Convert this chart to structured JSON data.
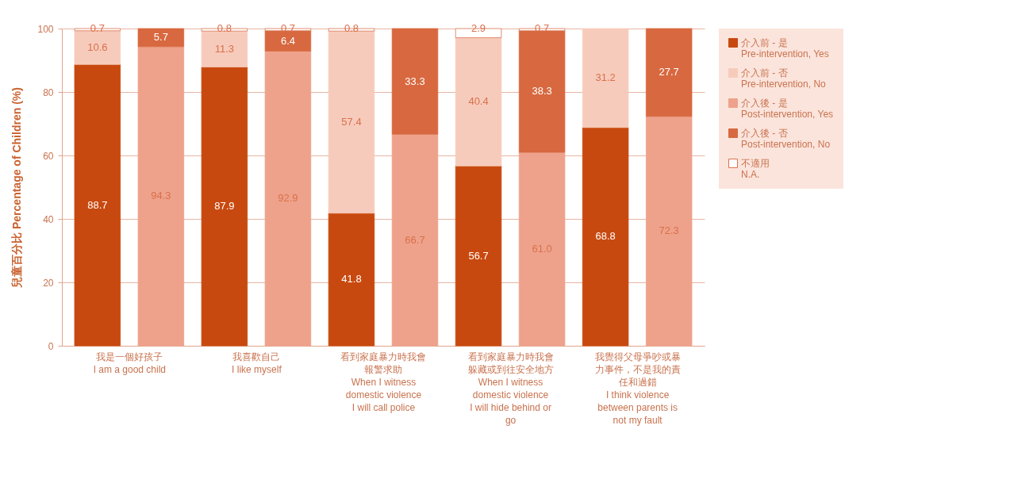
{
  "chart_data": {
    "type": "bar",
    "stacked": true,
    "ylabel": "兒童百分比 Percentage of Children (%)",
    "categories": [
      "我是一個好孩子\nI am a good child",
      null,
      "我喜歡自己\nI like myself",
      null,
      "看到家庭暴力時我會報警求助\nWhen I witness\ndomestic violence\nI will call police",
      null,
      "看到家庭暴力時我會躲藏或到往安全地方\nWhen I witness\ndomestic violence\nI will hide behind or\ngo",
      null,
      "我覺得父母爭吵或暴力事件，不是我的責任和過錯\nI think violence\nbetween parents is\nnot my fault",
      null
    ],
    "series": [
      {
        "name": "介入前 - 是\nPre-intervention, Yes",
        "color": "#c8490f",
        "values": [
          88.7,
          null,
          87.9,
          null,
          41.8,
          null,
          56.7,
          null,
          68.8,
          null
        ]
      },
      {
        "name": "介入前 - 否\nPre-intervention, No",
        "color": "#f7cbbb",
        "values": [
          10.6,
          null,
          11.3,
          null,
          57.4,
          null,
          40.4,
          null,
          31.2,
          null
        ]
      },
      {
        "name": "介入後 - 是\nPost-intervention, Yes",
        "color": "#eea28b",
        "values": [
          null,
          94.3,
          null,
          92.9,
          null,
          66.7,
          null,
          61.0,
          null,
          72.3
        ],
        "value_labels": [
          null,
          "94.3",
          null,
          "92.9",
          null,
          "66.7",
          null,
          "61.0",
          null,
          "72.3"
        ]
      },
      {
        "name": "介入後 - 否\nPost-intervention, No",
        "color": "#d8683f",
        "values": [
          null,
          5.7,
          null,
          6.4,
          null,
          33.3,
          null,
          38.3,
          null,
          27.7
        ]
      },
      {
        "name": "不適用\nN.A.",
        "color": "#ffffff",
        "values": [
          0.7,
          null,
          0.8,
          0.7,
          0.8,
          null,
          2.9,
          0.7,
          null,
          null
        ]
      }
    ],
    "ylim": [
      0,
      100
    ],
    "yticks": [
      0,
      20,
      40,
      60,
      80,
      100
    ],
    "grid": "y",
    "legend": "top right",
    "data_labels": true
  }
}
